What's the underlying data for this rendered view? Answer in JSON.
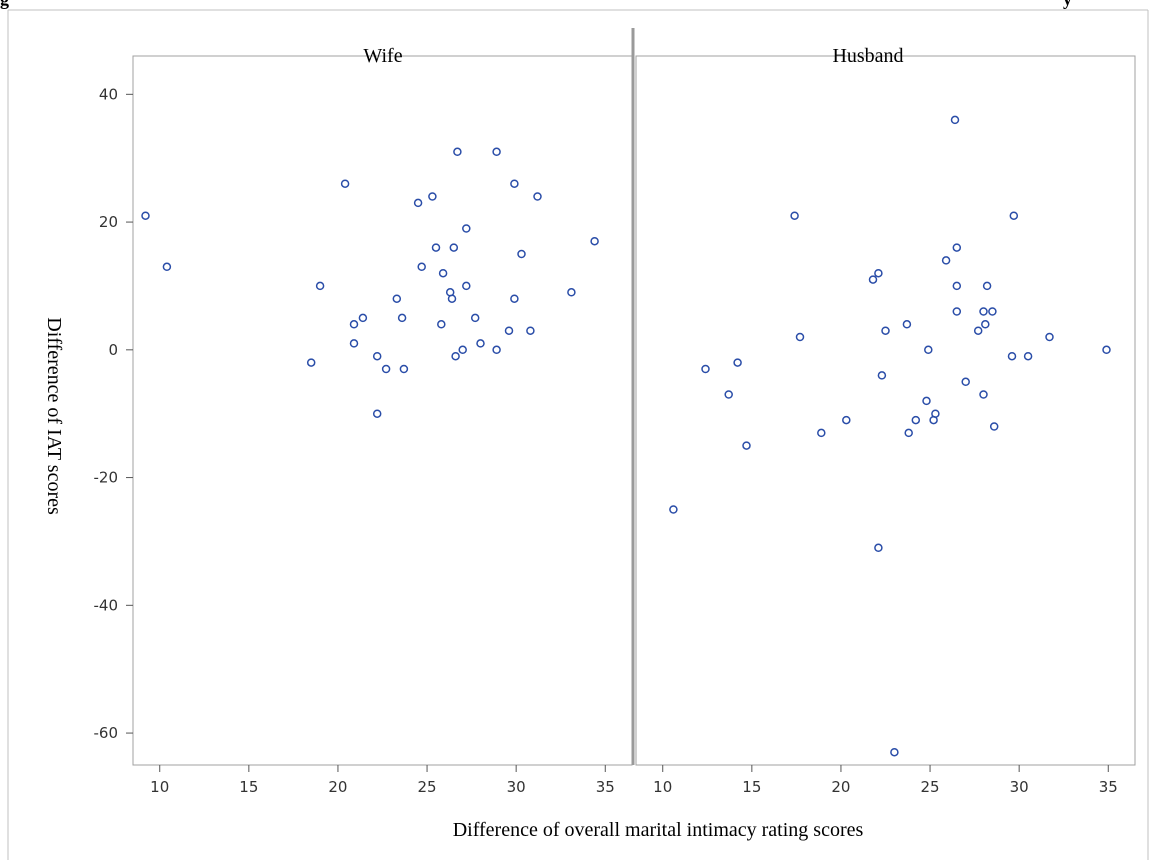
{
  "header_fragments": {
    "left": "g",
    "right": "y"
  },
  "colors": {
    "marker": "#2a4da8",
    "frame": "#a0a0a0",
    "tick": "#555555"
  },
  "chart_data": {
    "type": "scatter",
    "xlabel": "Difference of overall marital intimacy rating scores",
    "ylabel": "Difference of IAT scores",
    "xlim": [
      8.5,
      36.5
    ],
    "ylim": [
      -65,
      46
    ],
    "xticks": [
      "10",
      "15",
      "20",
      "25",
      "30",
      "35"
    ],
    "yticks": [
      "40",
      "20",
      "0",
      "-20",
      "-40",
      "-60"
    ],
    "grid": false,
    "panels": [
      {
        "label": "Wife",
        "points": [
          [
            9.2,
            21
          ],
          [
            10.4,
            13
          ],
          [
            18.5,
            -2
          ],
          [
            19,
            10
          ],
          [
            20.4,
            26
          ],
          [
            20.9,
            4
          ],
          [
            20.9,
            1
          ],
          [
            21.4,
            5
          ],
          [
            22.2,
            -1
          ],
          [
            22.2,
            -10
          ],
          [
            22.7,
            -3
          ],
          [
            23.3,
            8
          ],
          [
            23.6,
            5
          ],
          [
            23.7,
            -3
          ],
          [
            24.5,
            23
          ],
          [
            24.7,
            13
          ],
          [
            25.3,
            24
          ],
          [
            25.5,
            16
          ],
          [
            25.8,
            4
          ],
          [
            25.9,
            12
          ],
          [
            26.3,
            9
          ],
          [
            26.4,
            8
          ],
          [
            26.5,
            16
          ],
          [
            26.6,
            -1
          ],
          [
            26.7,
            31
          ],
          [
            27,
            0
          ],
          [
            27.2,
            19
          ],
          [
            27.2,
            10
          ],
          [
            27.7,
            5
          ],
          [
            28,
            1
          ],
          [
            28.9,
            31
          ],
          [
            28.9,
            0
          ],
          [
            29.6,
            3
          ],
          [
            29.9,
            26
          ],
          [
            29.9,
            8
          ],
          [
            30.3,
            15
          ],
          [
            30.8,
            3
          ],
          [
            31.2,
            24
          ],
          [
            33.1,
            9
          ],
          [
            34.4,
            17
          ]
        ]
      },
      {
        "label": "Husband",
        "points": [
          [
            10.6,
            -25
          ],
          [
            12.4,
            -3
          ],
          [
            13.7,
            -7
          ],
          [
            14.2,
            -2
          ],
          [
            14.7,
            -15
          ],
          [
            17.4,
            21
          ],
          [
            17.7,
            2
          ],
          [
            18.9,
            -13
          ],
          [
            20.3,
            -11
          ],
          [
            21.8,
            11
          ],
          [
            22.1,
            12
          ],
          [
            22.1,
            -31
          ],
          [
            22.3,
            -4
          ],
          [
            22.5,
            3
          ],
          [
            23,
            -63
          ],
          [
            23.7,
            4
          ],
          [
            23.8,
            -13
          ],
          [
            24.2,
            -11
          ],
          [
            24.8,
            -8
          ],
          [
            24.9,
            0
          ],
          [
            25.2,
            -11
          ],
          [
            25.3,
            -10
          ],
          [
            25.9,
            14
          ],
          [
            26.4,
            36
          ],
          [
            26.5,
            16
          ],
          [
            26.5,
            10
          ],
          [
            26.5,
            6
          ],
          [
            27,
            -5
          ],
          [
            27.7,
            3
          ],
          [
            28,
            6
          ],
          [
            28.1,
            4
          ],
          [
            28,
            -7
          ],
          [
            28.2,
            10
          ],
          [
            28.5,
            6
          ],
          [
            28.6,
            -12
          ],
          [
            29.6,
            -1
          ],
          [
            29.7,
            21
          ],
          [
            30.5,
            -1
          ],
          [
            31.7,
            2
          ],
          [
            34.9,
            0
          ]
        ]
      }
    ]
  }
}
